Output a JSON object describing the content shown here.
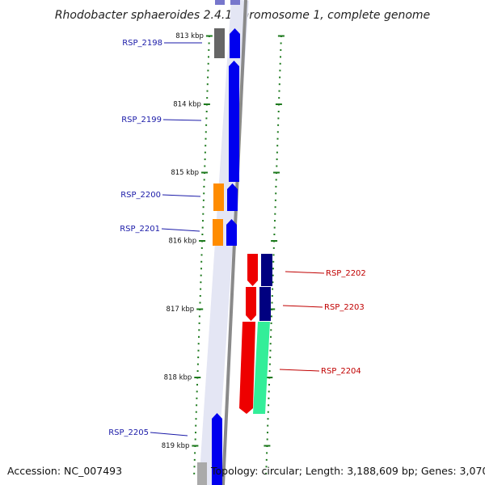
{
  "title": "Rhodobacter sphaeroides 2.4.1 chromosome 1, complete genome",
  "footer": {
    "accession": "Accession: NC_007493",
    "topology": "Topology: circular; Length: 3,188,609 bp; Genes: 3,070"
  },
  "colors": {
    "backbone": "#888888",
    "tick": "#1e7a1e",
    "label_left": "#1a1aa8",
    "label_right": "#c00000",
    "gene_blue": "#0000ee",
    "gene_gray": "#666666",
    "gene_orange": "#ff8c00",
    "gene_red": "#ee0000",
    "gene_navy": "#000080",
    "gene_teal": "#33ee99"
  },
  "kbp_labels": [
    "813 kbp",
    "814 kbp",
    "815 kbp",
    "816 kbp",
    "817 kbp",
    "818 kbp",
    "819 kbp"
  ],
  "genes": [
    {
      "id": "RSP_2198",
      "strand": "-"
    },
    {
      "id": "RSP_2199",
      "strand": "-"
    },
    {
      "id": "RSP_2200",
      "strand": "-"
    },
    {
      "id": "RSP_2201",
      "strand": "-"
    },
    {
      "id": "RSP_2202",
      "strand": "+"
    },
    {
      "id": "RSP_2203",
      "strand": "+"
    },
    {
      "id": "RSP_2204",
      "strand": "+"
    },
    {
      "id": "RSP_2205",
      "strand": "-"
    }
  ]
}
